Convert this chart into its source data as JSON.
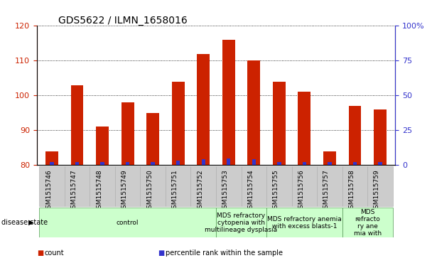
{
  "title": "GDS5622 / ILMN_1658016",
  "categories": [
    "GSM1515746",
    "GSM1515747",
    "GSM1515748",
    "GSM1515749",
    "GSM1515750",
    "GSM1515751",
    "GSM1515752",
    "GSM1515753",
    "GSM1515754",
    "GSM1515755",
    "GSM1515756",
    "GSM1515757",
    "GSM1515758",
    "GSM1515759"
  ],
  "count_values": [
    84,
    103,
    91,
    98,
    95,
    104,
    112,
    116,
    110,
    104,
    101,
    84,
    97,
    96
  ],
  "percentile_values": [
    2,
    2,
    2,
    2,
    2,
    3,
    4,
    5,
    4,
    2,
    2,
    2,
    2,
    2
  ],
  "bar_width": 0.5,
  "count_color": "#cc2200",
  "percentile_color": "#3333cc",
  "left_ylim": [
    80,
    120
  ],
  "left_yticks": [
    80,
    90,
    100,
    110,
    120
  ],
  "right_ylim": [
    0,
    100
  ],
  "right_yticks": [
    0,
    25,
    50,
    75,
    100
  ],
  "right_yticklabels": [
    "0",
    "25",
    "50",
    "75",
    "100%"
  ],
  "background_color": "#ffffff",
  "axis_color_left": "#cc2200",
  "axis_color_right": "#3333cc",
  "disease_groups": [
    {
      "label": "control",
      "start": 0,
      "end": 7,
      "color": "#ccffcc",
      "border": "#559955"
    },
    {
      "label": "MDS refractory\ncytopenia with\nmultilineage dysplasia",
      "start": 7,
      "end": 9,
      "color": "#ccffcc",
      "border": "#559955"
    },
    {
      "label": "MDS refractory anemia\nwith excess blasts-1",
      "start": 9,
      "end": 12,
      "color": "#ccffcc",
      "border": "#559955"
    },
    {
      "label": "MDS\nrefracto\nry ane\nmia with",
      "start": 12,
      "end": 14,
      "color": "#ccffcc",
      "border": "#559955"
    }
  ],
  "disease_state_label": "disease state",
  "legend_items": [
    {
      "label": "count",
      "color": "#cc2200"
    },
    {
      "label": "percentile rank within the sample",
      "color": "#3333cc"
    }
  ],
  "tick_bg_color": "#cccccc",
  "tick_border_color": "#aaaaaa",
  "title_fontsize": 10,
  "tick_fontsize": 6.5,
  "axis_tick_fontsize": 8,
  "label_fontsize": 7,
  "disease_fontsize": 6.5
}
